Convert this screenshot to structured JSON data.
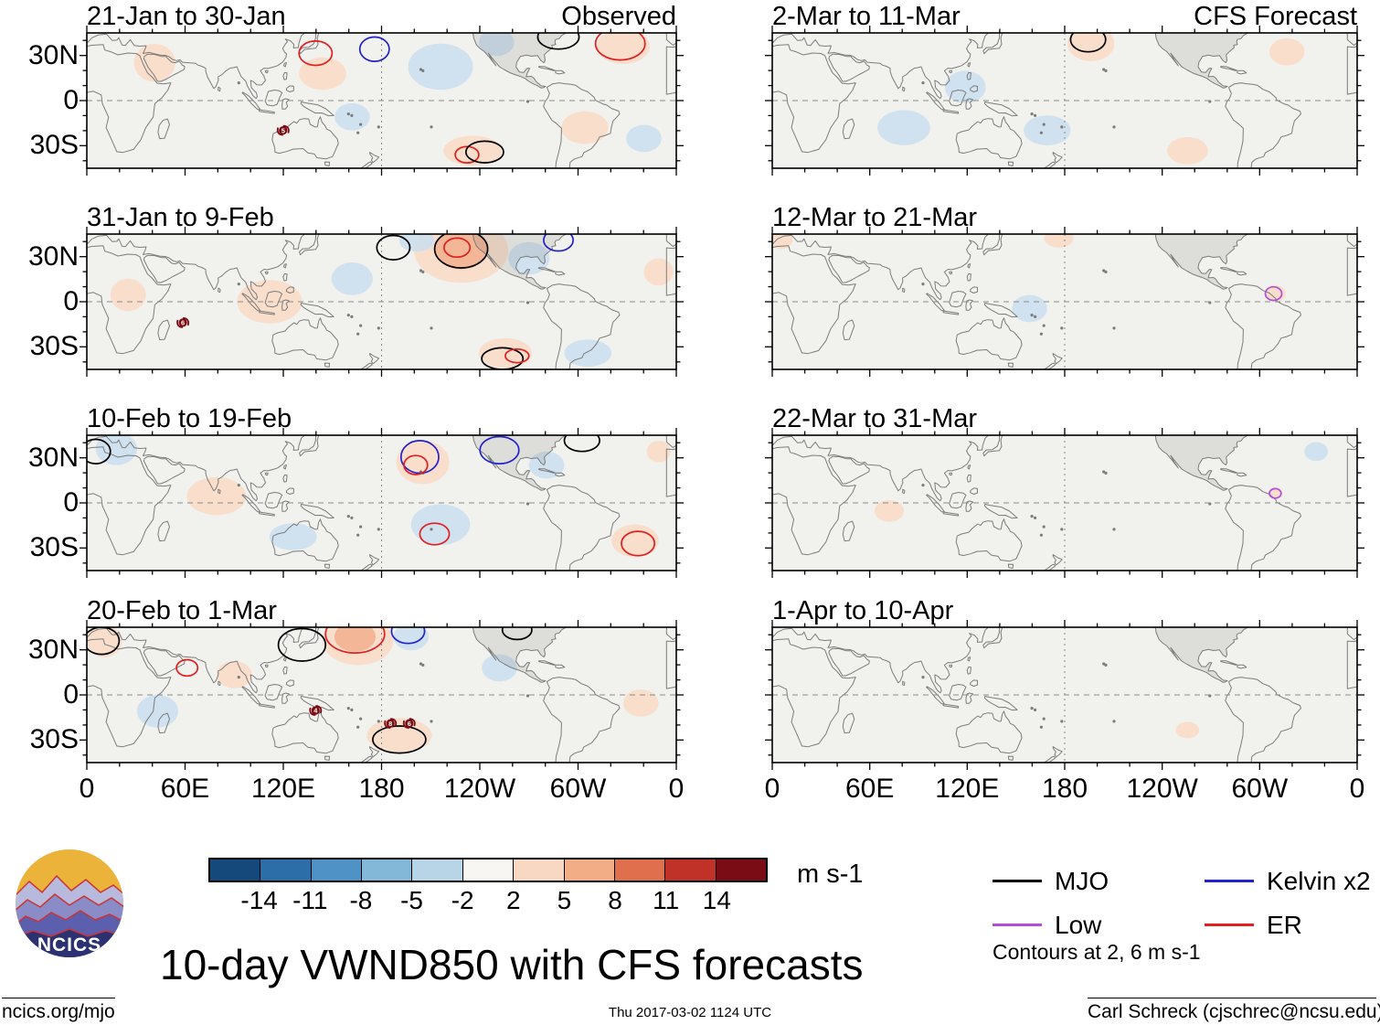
{
  "chart_data": {
    "type": "map-grid",
    "title": "10-day VWND850 with CFS forecasts",
    "units": "m s-1",
    "lat_labels": [
      "30N",
      "0",
      "30S"
    ],
    "lon_labels": [
      "0",
      "60E",
      "120E",
      "180",
      "120W",
      "60W",
      "0"
    ],
    "map_colors": {
      "ocean": "#f1f1ee",
      "coast": "#7c7c7c",
      "na_fill": "rgba(120,120,120,0.16)",
      "grid": "#8a8a8a"
    },
    "shading_colors": {
      "pos1": "#f8dbc6",
      "pos2": "#f2b291",
      "neg1": "#ccdfee",
      "neg2": "#a9c9e0"
    },
    "storm_color": "#7a0a12",
    "colorbar": {
      "levels": [
        -14,
        -11,
        -8,
        -5,
        -2,
        2,
        5,
        8,
        11,
        14
      ],
      "colors": [
        "#16497b",
        "#2c6fa8",
        "#4f93c6",
        "#84b8d8",
        "#b8d5e8",
        "#f7f6f3",
        "#f8d8c2",
        "#f2ac86",
        "#e0704d",
        "#c03127",
        "#7a0c16"
      ]
    },
    "legend": {
      "items": [
        {
          "key": "MJO",
          "label": "MJO",
          "color": "#000000"
        },
        {
          "key": "Kelvin",
          "label": "Kelvin x2",
          "color": "#2222cc"
        },
        {
          "key": "Low",
          "label": "Low",
          "color": "#b34fd6"
        },
        {
          "key": "ER",
          "label": "ER",
          "color": "#e01f1f"
        }
      ],
      "note": "Contours at 2, 6 m s-1"
    },
    "panels": [
      {
        "title": "21-Jan to 30-Jan",
        "corner": "Observed",
        "shading": [
          {
            "x": 0.115,
            "y": 0.22,
            "rx": 0.035,
            "ry": 0.14,
            "c": "pos1"
          },
          {
            "x": 0.4,
            "y": 0.3,
            "rx": 0.04,
            "ry": 0.12,
            "c": "pos1"
          },
          {
            "x": 0.6,
            "y": 0.25,
            "rx": 0.055,
            "ry": 0.17,
            "c": "neg1"
          },
          {
            "x": 0.695,
            "y": 0.07,
            "rx": 0.03,
            "ry": 0.1,
            "c": "neg1"
          },
          {
            "x": 0.91,
            "y": 0.1,
            "rx": 0.045,
            "ry": 0.13,
            "c": "pos1"
          },
          {
            "x": 0.845,
            "y": 0.7,
            "rx": 0.04,
            "ry": 0.12,
            "c": "pos1"
          },
          {
            "x": 0.945,
            "y": 0.78,
            "rx": 0.03,
            "ry": 0.1,
            "c": "neg1"
          },
          {
            "x": 0.655,
            "y": 0.87,
            "rx": 0.05,
            "ry": 0.11,
            "c": "pos1"
          },
          {
            "x": 0.45,
            "y": 0.62,
            "rx": 0.03,
            "ry": 0.1,
            "c": "neg1"
          }
        ],
        "contours": [
          {
            "x": 0.388,
            "y": 0.15,
            "rx": 0.028,
            "ry": 0.09,
            "t": "ER"
          },
          {
            "x": 0.488,
            "y": 0.12,
            "rx": 0.025,
            "ry": 0.09,
            "t": "Kelvin"
          },
          {
            "x": 0.8,
            "y": 0.03,
            "rx": 0.035,
            "ry": 0.09,
            "t": "MJO"
          },
          {
            "x": 0.905,
            "y": 0.08,
            "rx": 0.042,
            "ry": 0.12,
            "t": "ER"
          },
          {
            "x": 0.645,
            "y": 0.9,
            "rx": 0.02,
            "ry": 0.06,
            "t": "ER"
          },
          {
            "x": 0.675,
            "y": 0.88,
            "rx": 0.032,
            "ry": 0.08,
            "t": "MJO"
          }
        ],
        "storms": [
          {
            "x": 0.333,
            "y": 0.72,
            "label": "5"
          }
        ]
      },
      {
        "title": "31-Jan to 9-Feb",
        "shading": [
          {
            "x": 0.635,
            "y": 0.12,
            "rx": 0.08,
            "ry": 0.24,
            "c": "pos1"
          },
          {
            "x": 0.635,
            "y": 0.11,
            "rx": 0.045,
            "ry": 0.15,
            "c": "pos2"
          },
          {
            "x": 0.56,
            "y": 0.05,
            "rx": 0.03,
            "ry": 0.08,
            "c": "neg1"
          },
          {
            "x": 0.75,
            "y": 0.18,
            "rx": 0.035,
            "ry": 0.12,
            "c": "neg1"
          },
          {
            "x": 0.31,
            "y": 0.5,
            "rx": 0.055,
            "ry": 0.16,
            "c": "pos1"
          },
          {
            "x": 0.45,
            "y": 0.33,
            "rx": 0.035,
            "ry": 0.12,
            "c": "neg1"
          },
          {
            "x": 0.85,
            "y": 0.88,
            "rx": 0.04,
            "ry": 0.1,
            "c": "neg1"
          },
          {
            "x": 0.71,
            "y": 0.88,
            "rx": 0.045,
            "ry": 0.11,
            "c": "pos1"
          },
          {
            "x": 0.97,
            "y": 0.28,
            "rx": 0.025,
            "ry": 0.1,
            "c": "pos1"
          },
          {
            "x": 0.07,
            "y": 0.45,
            "rx": 0.03,
            "ry": 0.12,
            "c": "pos1"
          }
        ],
        "contours": [
          {
            "x": 0.635,
            "y": 0.11,
            "rx": 0.045,
            "ry": 0.14,
            "t": "MJO"
          },
          {
            "x": 0.628,
            "y": 0.1,
            "rx": 0.022,
            "ry": 0.07,
            "t": "ER"
          },
          {
            "x": 0.52,
            "y": 0.1,
            "rx": 0.028,
            "ry": 0.09,
            "t": "MJO"
          },
          {
            "x": 0.8,
            "y": 0.045,
            "rx": 0.025,
            "ry": 0.08,
            "t": "Kelvin"
          },
          {
            "x": 0.705,
            "y": 0.92,
            "rx": 0.035,
            "ry": 0.08,
            "t": "MJO"
          },
          {
            "x": 0.73,
            "y": 0.9,
            "rx": 0.02,
            "ry": 0.05,
            "t": "ER"
          }
        ],
        "storms": [
          {
            "x": 0.163,
            "y": 0.655,
            "label": "6"
          }
        ]
      },
      {
        "title": "10-Feb to 19-Feb",
        "shading": [
          {
            "x": 0.57,
            "y": 0.2,
            "rx": 0.045,
            "ry": 0.16,
            "c": "pos1"
          },
          {
            "x": 0.05,
            "y": 0.1,
            "rx": 0.035,
            "ry": 0.12,
            "c": "neg1"
          },
          {
            "x": 0.22,
            "y": 0.45,
            "rx": 0.05,
            "ry": 0.14,
            "c": "pos1"
          },
          {
            "x": 0.6,
            "y": 0.66,
            "rx": 0.05,
            "ry": 0.15,
            "c": "neg1"
          },
          {
            "x": 0.93,
            "y": 0.78,
            "rx": 0.04,
            "ry": 0.12,
            "c": "pos1"
          },
          {
            "x": 0.78,
            "y": 0.22,
            "rx": 0.03,
            "ry": 0.1,
            "c": "neg1"
          },
          {
            "x": 0.35,
            "y": 0.75,
            "rx": 0.04,
            "ry": 0.1,
            "c": "neg1"
          },
          {
            "x": 0.97,
            "y": 0.12,
            "rx": 0.02,
            "ry": 0.08,
            "c": "pos1"
          }
        ],
        "contours": [
          {
            "x": 0.565,
            "y": 0.16,
            "rx": 0.032,
            "ry": 0.12,
            "t": "Kelvin"
          },
          {
            "x": 0.558,
            "y": 0.22,
            "rx": 0.02,
            "ry": 0.07,
            "t": "ER"
          },
          {
            "x": 0.7,
            "y": 0.11,
            "rx": 0.033,
            "ry": 0.1,
            "t": "Kelvin"
          },
          {
            "x": 0.84,
            "y": 0.04,
            "rx": 0.03,
            "ry": 0.08,
            "t": "MJO"
          },
          {
            "x": 0.015,
            "y": 0.12,
            "rx": 0.025,
            "ry": 0.09,
            "t": "MJO"
          },
          {
            "x": 0.59,
            "y": 0.73,
            "rx": 0.025,
            "ry": 0.08,
            "t": "ER"
          },
          {
            "x": 0.935,
            "y": 0.8,
            "rx": 0.028,
            "ry": 0.09,
            "t": "ER"
          }
        ],
        "storms": []
      },
      {
        "title": "20-Feb to 1-Mar",
        "shading": [
          {
            "x": 0.46,
            "y": 0.1,
            "rx": 0.06,
            "ry": 0.18,
            "c": "pos1"
          },
          {
            "x": 0.455,
            "y": 0.07,
            "rx": 0.035,
            "ry": 0.11,
            "c": "pos2"
          },
          {
            "x": 0.55,
            "y": 0.07,
            "rx": 0.03,
            "ry": 0.1,
            "c": "neg1"
          },
          {
            "x": 0.03,
            "y": 0.1,
            "rx": 0.03,
            "ry": 0.12,
            "c": "pos1"
          },
          {
            "x": 0.12,
            "y": 0.62,
            "rx": 0.035,
            "ry": 0.12,
            "c": "neg1"
          },
          {
            "x": 0.53,
            "y": 0.8,
            "rx": 0.055,
            "ry": 0.13,
            "c": "pos1"
          },
          {
            "x": 0.94,
            "y": 0.56,
            "rx": 0.03,
            "ry": 0.1,
            "c": "pos1"
          },
          {
            "x": 0.7,
            "y": 0.3,
            "rx": 0.03,
            "ry": 0.1,
            "c": "neg1"
          },
          {
            "x": 0.25,
            "y": 0.35,
            "rx": 0.03,
            "ry": 0.1,
            "c": "pos1"
          }
        ],
        "contours": [
          {
            "x": 0.455,
            "y": 0.05,
            "rx": 0.05,
            "ry": 0.14,
            "t": "ER"
          },
          {
            "x": 0.545,
            "y": 0.03,
            "rx": 0.028,
            "ry": 0.09,
            "t": "Kelvin"
          },
          {
            "x": 0.365,
            "y": 0.13,
            "rx": 0.04,
            "ry": 0.12,
            "t": "MJO"
          },
          {
            "x": 0.025,
            "y": 0.1,
            "rx": 0.03,
            "ry": 0.1,
            "t": "MJO"
          },
          {
            "x": 0.73,
            "y": 0.02,
            "rx": 0.025,
            "ry": 0.07,
            "t": "MJO"
          },
          {
            "x": 0.17,
            "y": 0.3,
            "rx": 0.018,
            "ry": 0.06,
            "t": "ER"
          },
          {
            "x": 0.53,
            "y": 0.83,
            "rx": 0.045,
            "ry": 0.1,
            "t": "MJO"
          }
        ],
        "storms": [
          {
            "x": 0.388,
            "y": 0.615,
            "label": "4"
          },
          {
            "x": 0.515,
            "y": 0.71,
            "label": "8"
          },
          {
            "x": 0.547,
            "y": 0.71,
            "label": "6"
          }
        ]
      },
      {
        "title": "2-Mar to 11-Mar",
        "corner": "CFS Forecast",
        "shading": [
          {
            "x": 0.545,
            "y": 0.08,
            "rx": 0.04,
            "ry": 0.13,
            "c": "pos1"
          },
          {
            "x": 0.225,
            "y": 0.7,
            "rx": 0.045,
            "ry": 0.13,
            "c": "neg1"
          },
          {
            "x": 0.47,
            "y": 0.72,
            "rx": 0.04,
            "ry": 0.11,
            "c": "neg1"
          },
          {
            "x": 0.33,
            "y": 0.4,
            "rx": 0.035,
            "ry": 0.12,
            "c": "neg1"
          },
          {
            "x": 0.71,
            "y": 0.87,
            "rx": 0.035,
            "ry": 0.1,
            "c": "pos1"
          },
          {
            "x": 0.88,
            "y": 0.14,
            "rx": 0.03,
            "ry": 0.1,
            "c": "pos1"
          }
        ],
        "contours": [
          {
            "x": 0.54,
            "y": 0.05,
            "rx": 0.03,
            "ry": 0.09,
            "t": "MJO"
          }
        ],
        "storms": []
      },
      {
        "title": "12-Mar to 21-Mar",
        "shading": [
          {
            "x": 0.015,
            "y": 0.04,
            "rx": 0.02,
            "ry": 0.07,
            "c": "pos1"
          },
          {
            "x": 0.49,
            "y": 0.03,
            "rx": 0.025,
            "ry": 0.07,
            "c": "pos1"
          },
          {
            "x": 0.86,
            "y": 0.44,
            "rx": 0.018,
            "ry": 0.06,
            "c": "pos1"
          },
          {
            "x": 0.44,
            "y": 0.55,
            "rx": 0.03,
            "ry": 0.1,
            "c": "neg1"
          }
        ],
        "contours": [
          {
            "x": 0.857,
            "y": 0.44,
            "rx": 0.014,
            "ry": 0.05,
            "t": "Low"
          }
        ],
        "storms": []
      },
      {
        "title": "22-Mar to 31-Mar",
        "shading": [
          {
            "x": 0.2,
            "y": 0.56,
            "rx": 0.025,
            "ry": 0.08,
            "c": "pos1"
          },
          {
            "x": 0.86,
            "y": 0.43,
            "rx": 0.012,
            "ry": 0.04,
            "c": "pos1"
          },
          {
            "x": 0.93,
            "y": 0.12,
            "rx": 0.02,
            "ry": 0.07,
            "c": "neg1"
          }
        ],
        "contours": [
          {
            "x": 0.86,
            "y": 0.43,
            "rx": 0.01,
            "ry": 0.035,
            "t": "Low"
          }
        ],
        "storms": []
      },
      {
        "title": "1-Apr to 10-Apr",
        "shading": [
          {
            "x": 0.71,
            "y": 0.76,
            "rx": 0.02,
            "ry": 0.06,
            "c": "pos1"
          }
        ],
        "contours": [],
        "storms": []
      }
    ]
  },
  "logo": {
    "text": "NCICS"
  },
  "footer": {
    "left": "ncics.org/mjo",
    "center": "Thu 2017-03-02 1124 UTC",
    "right": "Carl Schreck (cjschrec@ncsu.edu)"
  }
}
